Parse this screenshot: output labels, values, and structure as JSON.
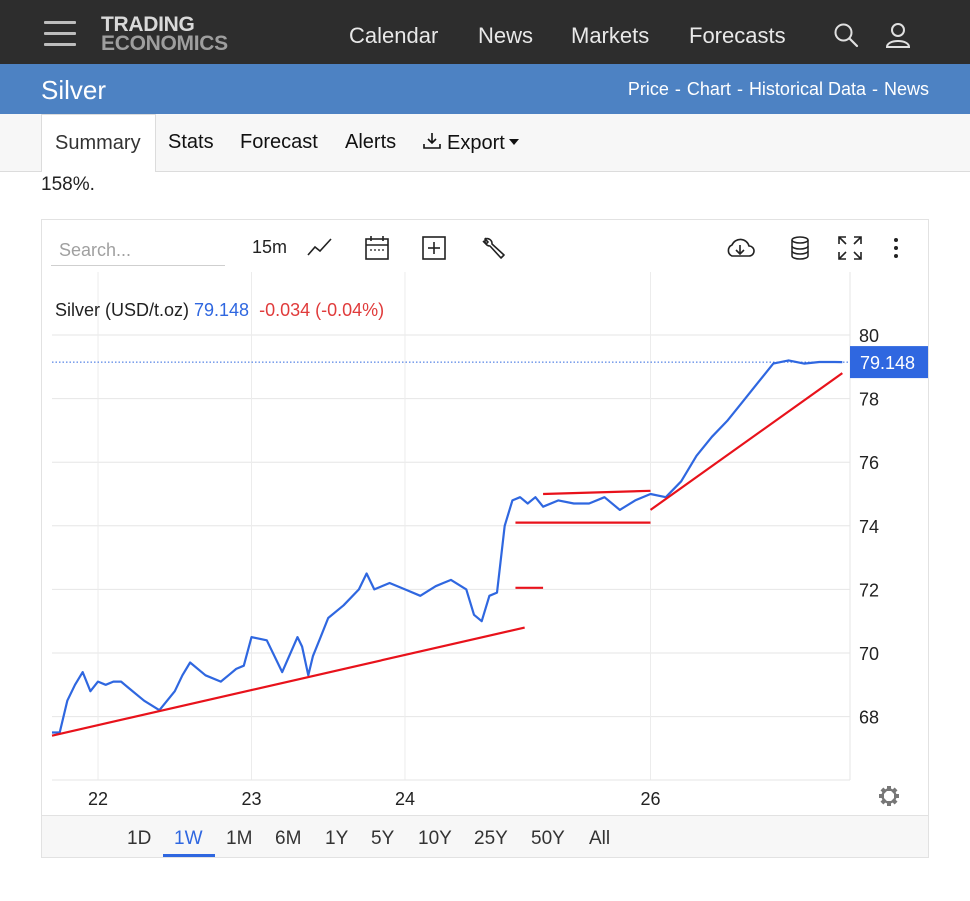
{
  "nav": {
    "logo_line1": "TRADING",
    "logo_line2": "ECONOMICS",
    "links": [
      "Calendar",
      "News",
      "Markets",
      "Forecasts"
    ],
    "icons": [
      "search-icon",
      "user-icon",
      "menu-icon"
    ]
  },
  "header": {
    "title": "Silver",
    "breadcrumbs": [
      "Price",
      "Chart",
      "Historical Data",
      "News"
    ]
  },
  "tabs": [
    "Summary",
    "Stats",
    "Forecast",
    "Alerts",
    "Export"
  ],
  "intro_text": "158%.",
  "toolbar": {
    "search_placeholder": "Search...",
    "interval": "15m",
    "icons": [
      "line-chart-icon",
      "calendar-icon",
      "add-indicator-icon",
      "wrench-icon",
      "download-cloud-icon",
      "database-icon",
      "fullscreen-icon",
      "more-vertical-icon"
    ]
  },
  "quote": {
    "name": "Silver (USD/t.oz)",
    "price": "79.148",
    "change": "-0.034",
    "change_pct": "(-0.04%)",
    "price_color": "#2f67e0",
    "change_color": "#e03b3b"
  },
  "ranges": [
    "1D",
    "1W",
    "1M",
    "6M",
    "1Y",
    "5Y",
    "10Y",
    "25Y",
    "50Y",
    "All"
  ],
  "active_range": "1W",
  "colors": {
    "nav_bg": "#2d2d2d",
    "title_bar": "#4d82c3",
    "series": "#2f67e0",
    "annotation": "#e8121b",
    "price_tag": "#2f67e0"
  },
  "chart_data": {
    "type": "line",
    "title": "Silver (USD/t.oz)",
    "xlabel": "",
    "ylabel": "",
    "x_ticks": [
      "22",
      "23",
      "24",
      "26"
    ],
    "y_ticks": [
      68,
      70,
      72,
      74,
      76,
      78,
      80
    ],
    "ylim": [
      66,
      82
    ],
    "grid": true,
    "last_price_label": "79.148",
    "series": [
      {
        "name": "Silver",
        "x": [
          21.7,
          21.75,
          21.8,
          21.85,
          21.9,
          21.95,
          22.0,
          22.05,
          22.1,
          22.15,
          22.2,
          22.3,
          22.4,
          22.5,
          22.55,
          22.6,
          22.7,
          22.8,
          22.85,
          22.9,
          22.95,
          23.0,
          23.1,
          23.2,
          23.3,
          23.33,
          23.37,
          23.4,
          23.45,
          23.5,
          23.6,
          23.7,
          23.75,
          23.8,
          23.9,
          24.0,
          24.1,
          24.2,
          24.25,
          24.3,
          24.4,
          24.45,
          24.5,
          24.55,
          24.6,
          24.65,
          24.7,
          24.75,
          24.8,
          24.85,
          24.9,
          25.0,
          25.1,
          25.2,
          25.3,
          25.4,
          25.5,
          25.6,
          25.7,
          25.8,
          25.9,
          26.0,
          26.1,
          26.2,
          26.3,
          26.4,
          26.5,
          26.6,
          26.7,
          26.8,
          26.85
        ],
        "values": [
          67.5,
          67.5,
          68.5,
          69.0,
          69.4,
          68.8,
          69.1,
          69.0,
          69.1,
          69.1,
          68.9,
          68.5,
          68.2,
          68.8,
          69.3,
          69.7,
          69.3,
          69.1,
          69.3,
          69.5,
          69.6,
          70.5,
          70.4,
          69.4,
          70.5,
          70.2,
          69.3,
          69.9,
          70.5,
          71.1,
          71.5,
          72.0,
          72.5,
          72.0,
          72.2,
          72.0,
          71.8,
          72.1,
          72.2,
          72.3,
          72.0,
          71.2,
          71.0,
          71.8,
          71.9,
          74.0,
          74.8,
          74.9,
          74.7,
          74.9,
          74.6,
          74.8,
          74.7,
          74.7,
          74.9,
          74.5,
          74.8,
          75.0,
          74.9,
          75.4,
          76.2,
          76.8,
          77.3,
          77.9,
          78.5,
          79.1,
          79.2,
          79.1,
          79.15,
          79.15,
          79.148
        ]
      }
    ],
    "annotations": [
      {
        "type": "trendline",
        "from": [
          21.7,
          67.4
        ],
        "to": [
          24.78,
          70.8
        ]
      },
      {
        "type": "hline",
        "from": [
          24.72,
          72.05
        ],
        "to": [
          24.9,
          72.05
        ]
      },
      {
        "type": "hline",
        "from": [
          24.9,
          75.0
        ],
        "to": [
          25.6,
          75.1
        ]
      },
      {
        "type": "hline",
        "from": [
          24.72,
          74.1
        ],
        "to": [
          25.6,
          74.1
        ]
      },
      {
        "type": "trendline",
        "from": [
          25.6,
          74.5
        ],
        "to": [
          26.85,
          78.8
        ]
      }
    ]
  }
}
